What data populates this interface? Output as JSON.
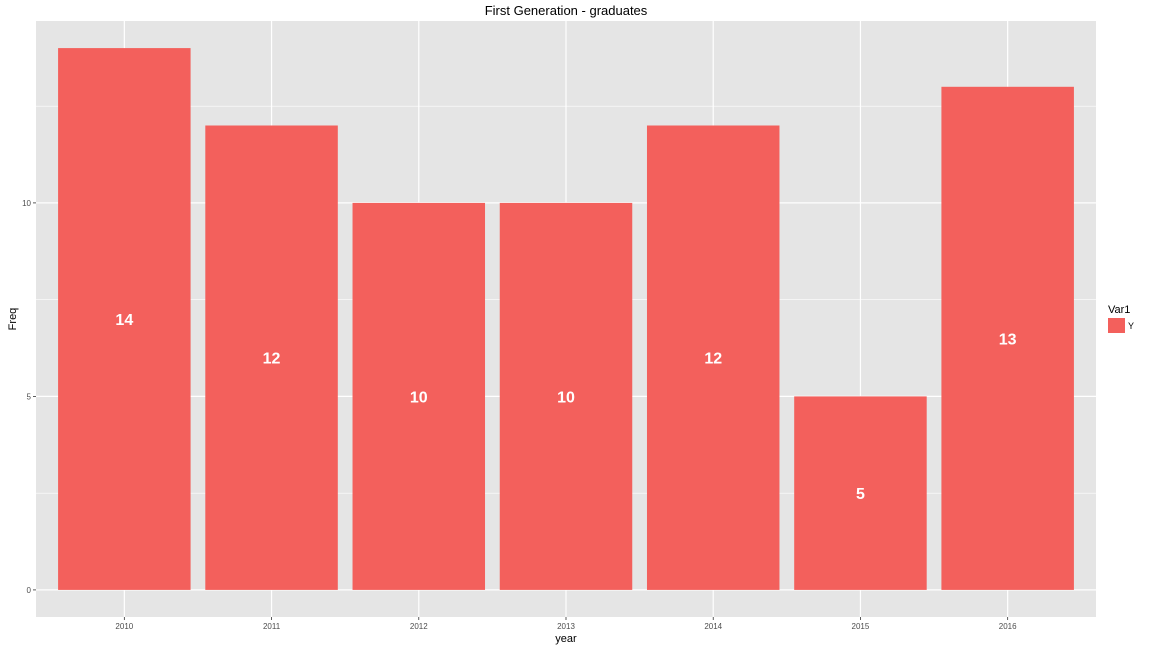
{
  "chart_data": {
    "type": "bar",
    "title": "First Generation - graduates",
    "xlabel": "year",
    "ylabel": "Freq",
    "categories": [
      "2010",
      "2011",
      "2012",
      "2013",
      "2014",
      "2015",
      "2016"
    ],
    "series": [
      {
        "name": "Y",
        "values": [
          14,
          12,
          10,
          10,
          12,
          5,
          13
        ]
      }
    ],
    "data_labels": [
      "14",
      "12",
      "10",
      "10",
      "12",
      "5",
      "13"
    ],
    "ylim": [
      0,
      14
    ],
    "y_ticks": [
      0,
      5,
      10
    ],
    "y_tick_labels": [
      "0",
      "5",
      "10"
    ],
    "grid": true,
    "legend": {
      "title": "Var1",
      "position": "right",
      "items": [
        "Y"
      ]
    },
    "colors": {
      "panel": "#e5e5e5",
      "grid": "#ffffff",
      "bar": "#f3605c",
      "bar_label": "#ffffff"
    }
  }
}
